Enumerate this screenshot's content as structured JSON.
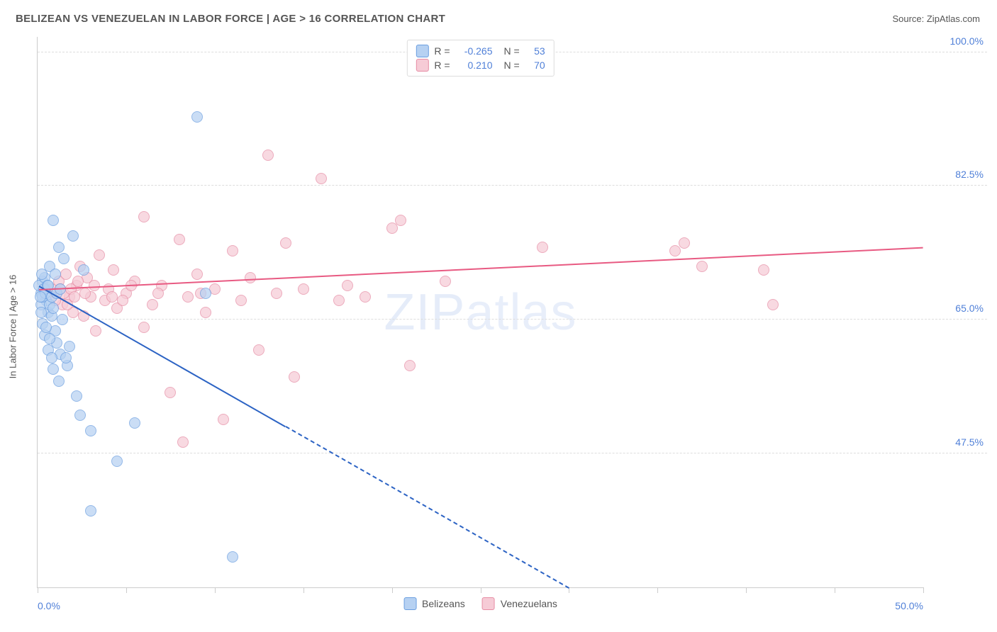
{
  "header": {
    "title": "BELIZEAN VS VENEZUELAN IN LABOR FORCE | AGE > 16 CORRELATION CHART",
    "source": "Source: ZipAtlas.com"
  },
  "watermark": {
    "bold": "ZIP",
    "light": "atlas"
  },
  "chart": {
    "type": "scatter",
    "y_axis_title": "In Labor Force | Age > 16",
    "xlim": [
      0.0,
      50.0
    ],
    "ylim": [
      30.0,
      102.0
    ],
    "x_ticks": [
      0,
      5,
      10,
      15,
      20,
      25,
      30,
      35,
      40,
      45,
      50
    ],
    "x_tick_labels": {
      "0": "0.0%",
      "50": "50.0%"
    },
    "y_grid": [
      47.5,
      65.0,
      82.5,
      100.0
    ],
    "y_grid_labels": {
      "47.5": "47.5%",
      "65.0": "65.0%",
      "82.5": "82.5%",
      "100.0": "100.0%"
    },
    "background_color": "#ffffff",
    "grid_color": "#dddddd",
    "axis_color": "#cccccc",
    "label_color": "#5080d8",
    "marker_radius": 8,
    "series": [
      {
        "name": "Belizeans",
        "fill_color": "#b6d1f2",
        "stroke_color": "#6a9ee0",
        "R": "-0.265",
        "N": "53",
        "trend": {
          "x0": 0.1,
          "y0": 69.5,
          "x_solid_end": 14.0,
          "x1": 30.0,
          "y1": 30.0,
          "color": "#2c63c4",
          "width": 2
        },
        "points": [
          [
            0.2,
            68.5
          ],
          [
            0.3,
            70.0
          ],
          [
            0.4,
            69.0
          ],
          [
            0.5,
            67.5
          ],
          [
            0.6,
            66.0
          ],
          [
            0.7,
            72.0
          ],
          [
            0.8,
            65.5
          ],
          [
            0.9,
            78.0
          ],
          [
            1.0,
            63.5
          ],
          [
            1.1,
            62.0
          ],
          [
            1.2,
            74.5
          ],
          [
            1.3,
            60.5
          ],
          [
            1.5,
            73.0
          ],
          [
            1.7,
            59.0
          ],
          [
            2.0,
            76.0
          ],
          [
            2.2,
            55.0
          ],
          [
            2.4,
            52.5
          ],
          [
            2.6,
            71.5
          ],
          [
            3.0,
            50.5
          ],
          [
            3.0,
            40.0
          ],
          [
            4.5,
            46.5
          ],
          [
            5.5,
            51.5
          ],
          [
            9.0,
            91.5
          ],
          [
            9.5,
            68.5
          ],
          [
            11.0,
            34.0
          ],
          [
            0.3,
            64.5
          ],
          [
            0.4,
            63.0
          ],
          [
            0.6,
            61.0
          ],
          [
            0.7,
            62.5
          ],
          [
            0.8,
            60.0
          ],
          [
            0.9,
            58.5
          ],
          [
            1.0,
            71.0
          ],
          [
            1.2,
            57.0
          ],
          [
            1.4,
            65.0
          ],
          [
            0.1,
            69.5
          ],
          [
            0.2,
            67.0
          ],
          [
            0.2,
            66.0
          ],
          [
            0.3,
            68.0
          ],
          [
            0.4,
            70.5
          ],
          [
            0.35,
            69.0
          ],
          [
            0.45,
            68.5
          ],
          [
            0.55,
            69.5
          ],
          [
            0.25,
            71.0
          ],
          [
            0.5,
            64.0
          ],
          [
            0.15,
            68.0
          ],
          [
            0.6,
            69.5
          ],
          [
            0.7,
            67.0
          ],
          [
            0.8,
            68.0
          ],
          [
            0.9,
            66.5
          ],
          [
            1.1,
            68.5
          ],
          [
            1.3,
            69.0
          ],
          [
            1.6,
            60.0
          ],
          [
            1.8,
            61.5
          ]
        ]
      },
      {
        "name": "Venezuelans",
        "fill_color": "#f6cbd6",
        "stroke_color": "#e68ca4",
        "R": "0.210",
        "N": "70",
        "trend": {
          "x0": 0.1,
          "y0": 69.0,
          "x_solid_end": 50.0,
          "x1": 50.0,
          "y1": 74.5,
          "color": "#e85a82",
          "width": 2
        },
        "points": [
          [
            0.5,
            69.0
          ],
          [
            1.0,
            68.5
          ],
          [
            1.2,
            70.0
          ],
          [
            1.4,
            67.0
          ],
          [
            1.6,
            71.0
          ],
          [
            1.8,
            68.0
          ],
          [
            2.0,
            66.0
          ],
          [
            2.2,
            69.5
          ],
          [
            2.4,
            72.0
          ],
          [
            2.6,
            65.5
          ],
          [
            2.8,
            70.5
          ],
          [
            3.0,
            68.0
          ],
          [
            3.3,
            63.5
          ],
          [
            3.5,
            73.5
          ],
          [
            3.8,
            67.5
          ],
          [
            4.0,
            69.0
          ],
          [
            4.3,
            71.5
          ],
          [
            4.5,
            66.5
          ],
          [
            5.0,
            68.5
          ],
          [
            5.5,
            70.0
          ],
          [
            6.0,
            64.0
          ],
          [
            6.0,
            78.5
          ],
          [
            6.5,
            67.0
          ],
          [
            7.0,
            69.5
          ],
          [
            7.5,
            55.5
          ],
          [
            8.0,
            75.5
          ],
          [
            8.5,
            68.0
          ],
          [
            9.0,
            71.0
          ],
          [
            9.5,
            66.0
          ],
          [
            10.0,
            69.0
          ],
          [
            10.5,
            52.0
          ],
          [
            11.0,
            74.0
          ],
          [
            11.5,
            67.5
          ],
          [
            12.0,
            70.5
          ],
          [
            12.5,
            61.0
          ],
          [
            13.0,
            86.5
          ],
          [
            13.5,
            68.5
          ],
          [
            14.0,
            75.0
          ],
          [
            14.5,
            57.5
          ],
          [
            15.0,
            69.0
          ],
          [
            16.0,
            83.5
          ],
          [
            17.0,
            67.5
          ],
          [
            17.5,
            69.5
          ],
          [
            18.5,
            68.0
          ],
          [
            20.0,
            77.0
          ],
          [
            20.5,
            78.0
          ],
          [
            21.0,
            59.0
          ],
          [
            23.0,
            70.0
          ],
          [
            28.5,
            74.5
          ],
          [
            36.0,
            74.0
          ],
          [
            36.5,
            75.0
          ],
          [
            37.5,
            72.0
          ],
          [
            41.5,
            67.0
          ],
          [
            41.0,
            71.5
          ],
          [
            0.8,
            69.0
          ],
          [
            1.0,
            67.5
          ],
          [
            1.3,
            69.0
          ],
          [
            1.5,
            68.5
          ],
          [
            1.7,
            67.0
          ],
          [
            1.9,
            69.0
          ],
          [
            2.1,
            68.0
          ],
          [
            2.3,
            70.0
          ],
          [
            2.7,
            68.5
          ],
          [
            3.2,
            69.5
          ],
          [
            4.2,
            68.0
          ],
          [
            4.8,
            67.5
          ],
          [
            5.3,
            69.5
          ],
          [
            6.8,
            68.5
          ],
          [
            8.2,
            49.0
          ],
          [
            9.2,
            68.5
          ]
        ]
      }
    ]
  }
}
